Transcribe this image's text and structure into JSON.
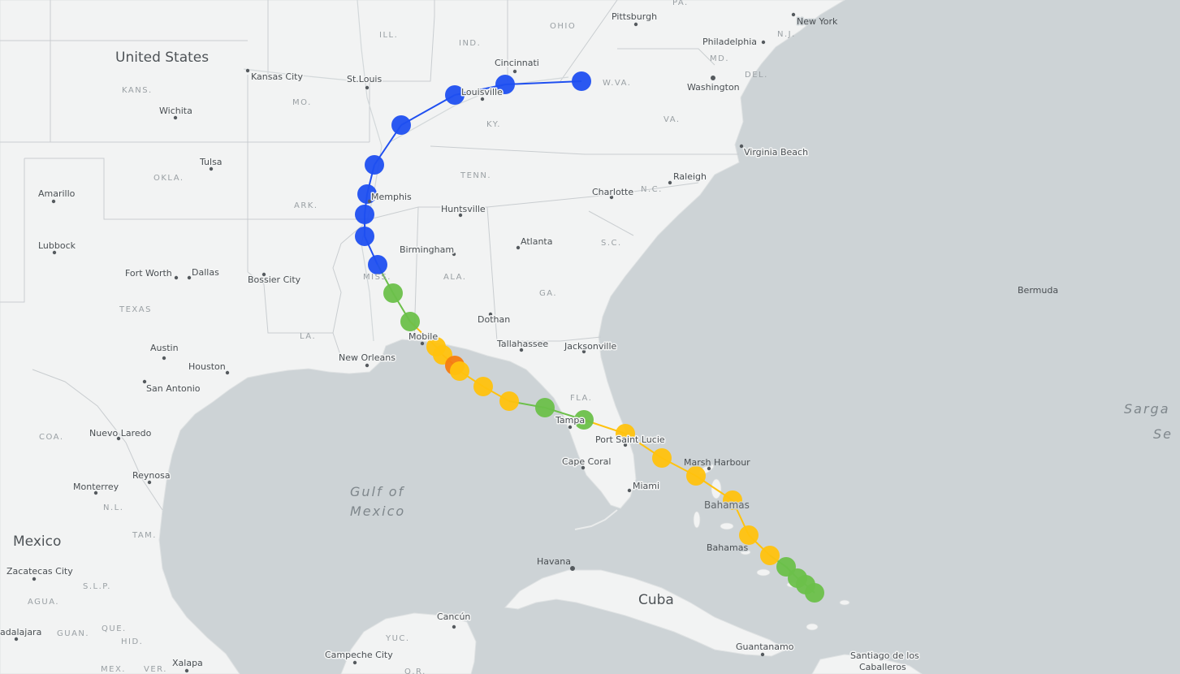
{
  "colors": {
    "ocean": "#cdd3d6",
    "land": "#f2f3f3",
    "border": "#c7cbce",
    "category_blue": "#1f4ff0",
    "category_green": "#6cc04a",
    "category_yellow": "#ffc20e",
    "category_orange": "#f57c10"
  },
  "labels": {
    "countries": {
      "united_states": "United States",
      "mexico": "Mexico",
      "cuba": "Cuba",
      "bahamas": "Bahamas"
    },
    "water": {
      "gulf_line1": "Gulf of",
      "gulf_line2": "Mexico",
      "sargasso_line1": "Sarga",
      "sargasso_line2": "Se"
    },
    "islands": {
      "bermuda": "Bermuda",
      "bahamas_south": "Bahamas",
      "caballeros_line1": "Santiago de los",
      "caballeros_line2": "Caballeros"
    },
    "states": {
      "ohio": "OHIO",
      "ind": "IND.",
      "ill": "ILL.",
      "pa": "PA.",
      "nj": "N.J.",
      "md": "MD.",
      "del": "DEL.",
      "wva": "W.VA.",
      "va": "VA.",
      "ky": "KY.",
      "mo": "MO.",
      "kans": "KANS.",
      "okla": "OKLA.",
      "ark": "ARK.",
      "tenn": "TENN.",
      "nc": "N.C.",
      "sc": "S.C.",
      "ga": "GA.",
      "ala": "ALA.",
      "miss": "MISS.",
      "la": "LA.",
      "texas": "TEXAS",
      "fla": "FLA.",
      "coa": "COA.",
      "nl": "N.L.",
      "tam": "TAM.",
      "slp": "S.L.P.",
      "agua": "AGUA.",
      "que": "QUE.",
      "guan": "GUAN.",
      "hid": "HID.",
      "mex": "MEX.",
      "ver": "VER.",
      "yuc": "YUC.",
      "qr": "Q.R."
    },
    "cities": {
      "pittsburgh": "Pittsburgh",
      "new_york": "New York",
      "philadelphia": "Philadelphia",
      "washington": "Washington",
      "virginia_beach": "Virginia Beach",
      "cincinnati": "Cincinnati",
      "louisville": "Louisville",
      "st_louis": "St.Louis",
      "kansas_city": "Kansas City",
      "wichita": "Wichita",
      "tulsa": "Tulsa",
      "amarillo": "Amarillo",
      "lubbock": "Lubbock",
      "memphis": "Memphis",
      "huntsville": "Huntsville",
      "charlotte": "Charlotte",
      "raleigh": "Raleigh",
      "atlanta": "Atlanta",
      "birmingham": "Birmingham",
      "fort_worth": "Fort Worth",
      "dallas": "Dallas",
      "bossier_city": "Bossier City",
      "dothan": "Dothan",
      "mobile": "Mobile",
      "tallahassee": "Tallahassee",
      "jacksonville": "Jacksonville",
      "new_orleans": "New Orleans",
      "austin": "Austin",
      "houston": "Houston",
      "san_antonio": "San Antonio",
      "tampa": "Tampa",
      "port_saint_lucie": "Port Saint Lucie",
      "cape_coral": "Cape Coral",
      "miami": "Miami",
      "marsh_harbour": "Marsh Harbour",
      "nuevo_laredo": "Nuevo Laredo",
      "reynosa": "Reynosa",
      "monterrey": "Monterrey",
      "zacatecas_city": "Zacatecas City",
      "guadalajara": "adalajara",
      "xalapa": "Xalapa",
      "havana": "Havana",
      "cancun": "Cancún",
      "campeche_city": "Campeche City",
      "guantanamo": "Guantanamo"
    }
  },
  "track": {
    "note": "storm track points with intensity category",
    "points": [
      {
        "cat": "blue"
      },
      {
        "cat": "blue"
      },
      {
        "cat": "blue"
      },
      {
        "cat": "blue"
      },
      {
        "cat": "blue"
      },
      {
        "cat": "blue"
      },
      {
        "cat": "blue"
      },
      {
        "cat": "blue"
      },
      {
        "cat": "blue"
      },
      {
        "cat": "green"
      },
      {
        "cat": "green"
      },
      {
        "cat": "yellow"
      },
      {
        "cat": "yellow"
      },
      {
        "cat": "orange"
      },
      {
        "cat": "yellow"
      },
      {
        "cat": "yellow"
      },
      {
        "cat": "yellow"
      },
      {
        "cat": "green"
      },
      {
        "cat": "green"
      },
      {
        "cat": "yellow"
      },
      {
        "cat": "yellow"
      },
      {
        "cat": "yellow"
      },
      {
        "cat": "yellow"
      },
      {
        "cat": "yellow"
      },
      {
        "cat": "yellow"
      },
      {
        "cat": "green"
      },
      {
        "cat": "green"
      },
      {
        "cat": "green"
      },
      {
        "cat": "green"
      }
    ]
  }
}
